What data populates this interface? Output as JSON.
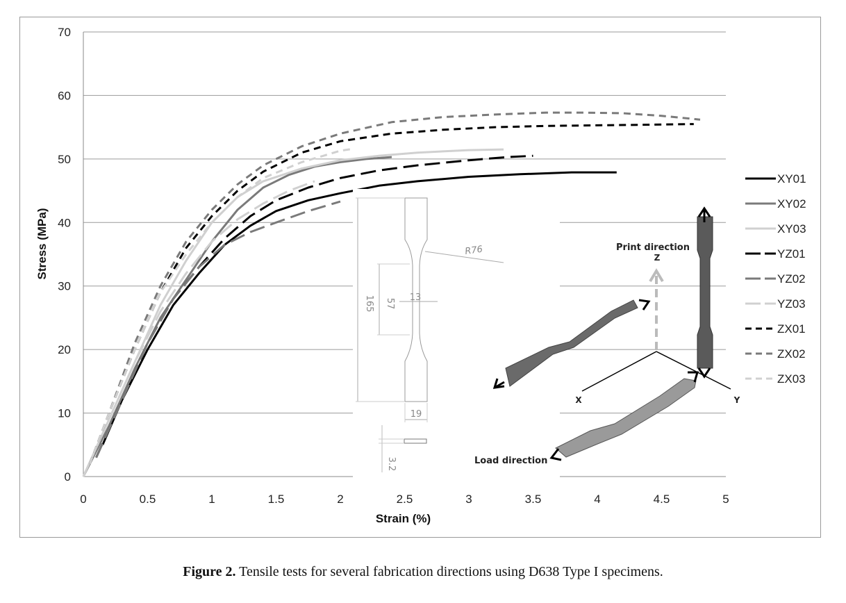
{
  "chart_data": {
    "type": "line",
    "title": "",
    "xlabel": "Strain (%)",
    "ylabel": "Stress (MPa)",
    "xlim": [
      0,
      5
    ],
    "ylim": [
      0,
      70
    ],
    "xticks": [
      "0",
      "0.5",
      "1",
      "1.5",
      "2",
      "2.5",
      "3",
      "3.5",
      "4",
      "4.5",
      "5"
    ],
    "yticks": [
      "0",
      "10",
      "20",
      "30",
      "40",
      "50",
      "60",
      "70"
    ],
    "grid": "horizontal",
    "legend_position": "right",
    "series": [
      {
        "name": "XY01",
        "color": "#000000",
        "dash": "solid",
        "x": [
          0.15,
          0.3,
          0.5,
          0.7,
          0.9,
          1.1,
          1.3,
          1.5,
          1.75,
          2,
          2.3,
          2.6,
          3,
          3.4,
          3.8,
          4.15
        ],
        "y": [
          5,
          12,
          20,
          27,
          32,
          36.5,
          39.5,
          41.8,
          43.5,
          44.6,
          45.8,
          46.5,
          47.2,
          47.6,
          47.9,
          47.9
        ]
      },
      {
        "name": "XY02",
        "color": "#7a7a7a",
        "dash": "solid",
        "x": [
          0,
          0.2,
          0.4,
          0.6,
          0.8,
          1,
          1.2,
          1.4,
          1.6,
          1.8,
          2,
          2.2,
          2.4
        ],
        "y": [
          0,
          8,
          17,
          25,
          31,
          37,
          42,
          45.5,
          47.5,
          48.8,
          49.5,
          50,
          50.3
        ]
      },
      {
        "name": "XY03",
        "color": "#d0d0d0",
        "dash": "solid",
        "x": [
          0,
          0.2,
          0.4,
          0.6,
          0.8,
          1,
          1.2,
          1.4,
          1.7,
          2,
          2.3,
          2.6,
          3,
          3.27
        ],
        "y": [
          0,
          9,
          18,
          27,
          34,
          40,
          44,
          46.5,
          48.5,
          49.8,
          50.5,
          51,
          51.4,
          51.5
        ]
      },
      {
        "name": "YZ01",
        "color": "#000000",
        "dash": "longdash",
        "x": [
          0.1,
          0.3,
          0.5,
          0.7,
          0.9,
          1.1,
          1.3,
          1.5,
          1.75,
          2,
          2.3,
          2.6,
          3,
          3.3,
          3.5
        ],
        "y": [
          3,
          12,
          21,
          28,
          33,
          37.5,
          41,
          43.5,
          45.5,
          47,
          48.2,
          49,
          49.8,
          50.3,
          50.5
        ]
      },
      {
        "name": "YZ02",
        "color": "#7a7a7a",
        "dash": "longdash",
        "x": [
          0.1,
          0.3,
          0.5,
          0.7,
          0.9,
          1.1,
          1.3,
          1.5,
          1.75,
          2.0
        ],
        "y": [
          3,
          12,
          21,
          28,
          33,
          36.5,
          38.5,
          40,
          41.8,
          43.3
        ]
      },
      {
        "name": "YZ03",
        "color": "#d0d0d0",
        "dash": "longdash",
        "x": [
          0,
          0.2,
          0.4,
          0.6,
          0.8,
          1,
          1.2,
          1.4,
          1.6,
          1.8
        ],
        "y": [
          0,
          9,
          18,
          26,
          32,
          37,
          40.5,
          43,
          45,
          46.5
        ]
      },
      {
        "name": "ZX01",
        "color": "#000000",
        "dash": "shortdash",
        "x": [
          0.05,
          0.2,
          0.4,
          0.6,
          0.8,
          1,
          1.2,
          1.4,
          1.7,
          2,
          2.4,
          2.8,
          3.2,
          3.6,
          4,
          4.4,
          4.75
        ],
        "y": [
          2,
          10,
          20,
          29,
          36,
          41,
          45,
          48,
          51,
          52.8,
          54,
          54.6,
          55,
          55.2,
          55.3,
          55.4,
          55.5
        ]
      },
      {
        "name": "ZX02",
        "color": "#7a7a7a",
        "dash": "shortdash",
        "x": [
          0.05,
          0.2,
          0.4,
          0.6,
          0.8,
          1,
          1.2,
          1.4,
          1.7,
          2,
          2.4,
          2.8,
          3.2,
          3.6,
          3.9,
          4.2,
          4.5,
          4.8
        ],
        "y": [
          2,
          10,
          21,
          30,
          37,
          42,
          46,
          49,
          52,
          54,
          55.8,
          56.6,
          57,
          57.3,
          57.3,
          57.2,
          56.8,
          56.2
        ]
      },
      {
        "name": "ZX03",
        "color": "#d0d0d0",
        "dash": "shortdash",
        "x": [
          0.05,
          0.2,
          0.4,
          0.6,
          0.8,
          1,
          1.2,
          1.4,
          1.7,
          2.0,
          2.1
        ],
        "y": [
          2,
          10,
          20,
          29,
          35,
          40,
          44,
          47,
          49.5,
          51.3,
          51.6
        ]
      }
    ],
    "inset_specimen": {
      "dimensions": [
        "R76",
        "165",
        "57",
        "13",
        "19",
        "3.2"
      ]
    },
    "inset_orientation": {
      "labels": {
        "print_direction": "Print direction",
        "load_direction": "Load direction",
        "z": "Z",
        "x": "X",
        "y": "Y"
      }
    }
  },
  "caption": {
    "label": "Figure 2.",
    "text": " Tensile tests for several fabrication directions using D638 Type I specimens."
  }
}
